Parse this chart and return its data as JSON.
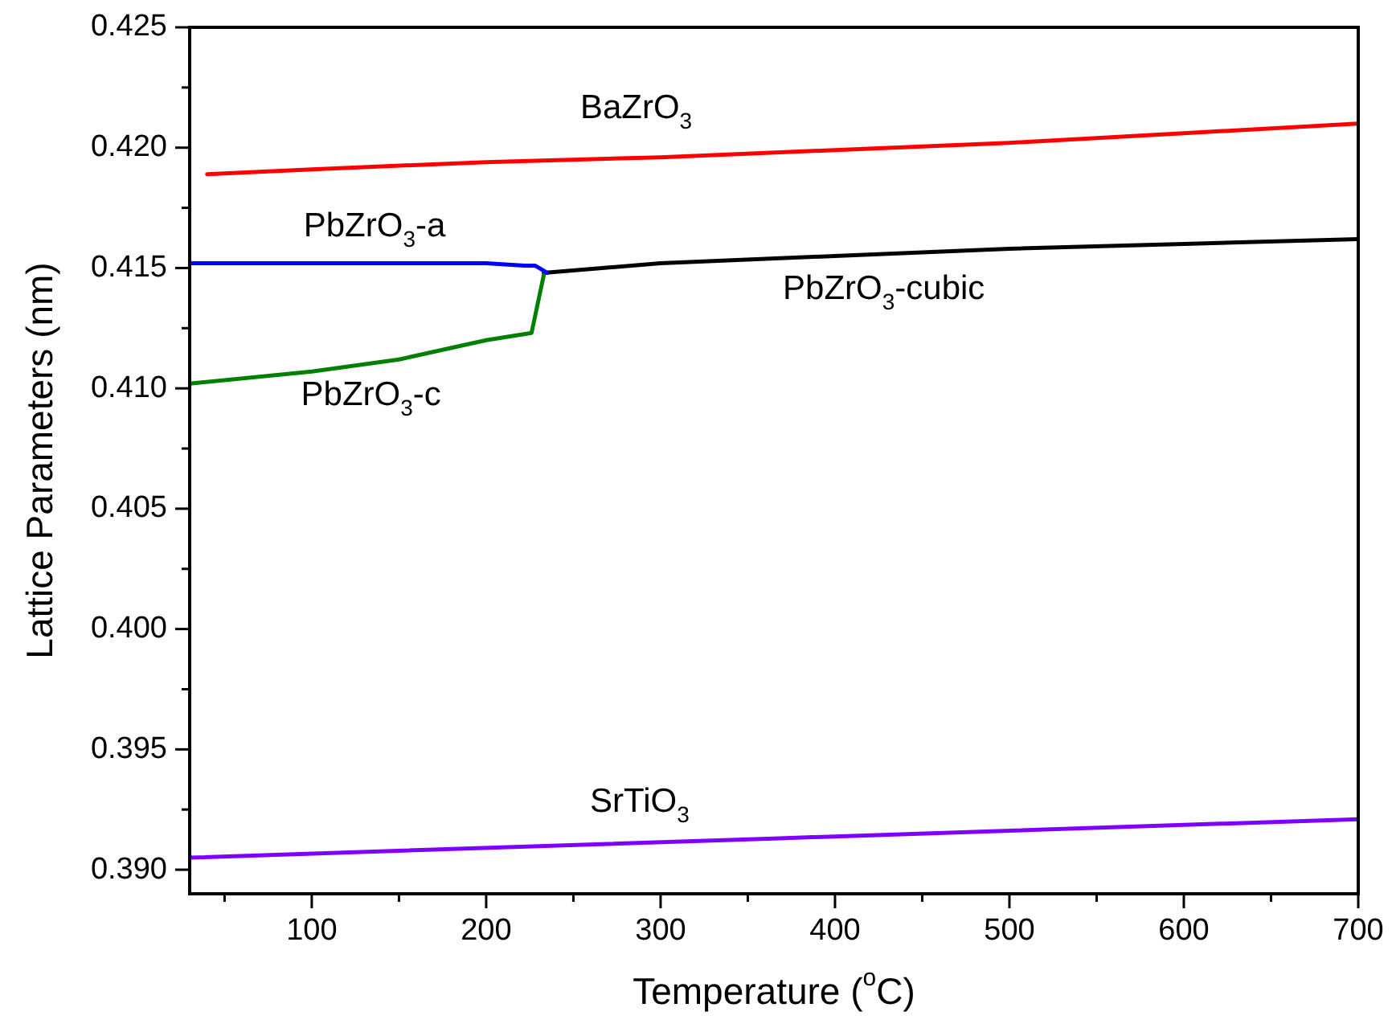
{
  "chart_data": {
    "type": "line",
    "xlabel": "Temperature ($^{o}$C)",
    "ylabel": "Lattice Parameters (nm)",
    "xlim": [
      30,
      700
    ],
    "ylim": [
      0.389,
      0.425
    ],
    "xticks": [
      {
        "value": 50,
        "label": null
      },
      100,
      {
        "value": 150,
        "label": null
      },
      200,
      {
        "value": 250,
        "label": null
      },
      300,
      {
        "value": 350,
        "label": null
      },
      400,
      {
        "value": 450,
        "label": null
      },
      500,
      {
        "value": 550,
        "label": null
      },
      600,
      {
        "value": 650,
        "label": null
      },
      700
    ],
    "yticks": [
      {
        "value": 0.39,
        "label": "0.390"
      },
      {
        "value": 0.3925,
        "label": null
      },
      0.395,
      {
        "value": 0.3975,
        "label": null
      },
      {
        "value": 0.4,
        "label": "0.400"
      },
      {
        "value": 0.4025,
        "label": null
      },
      0.405,
      {
        "value": 0.4075,
        "label": null
      },
      {
        "value": 0.41,
        "label": "0.410"
      },
      {
        "value": 0.4125,
        "label": null
      },
      0.415,
      {
        "value": 0.4175,
        "label": null
      },
      {
        "value": 0.42,
        "label": "0.420"
      },
      {
        "value": 0.4225,
        "label": null
      },
      0.425
    ],
    "grid": false,
    "legend": false,
    "marker": "none",
    "line_style": "solid",
    "series": [
      {
        "name": "BaZrO$_{3}$",
        "color": "#ff0000",
        "x": [
          40,
          100,
          200,
          300,
          400,
          500,
          600,
          700
        ],
        "values": [
          0.4189,
          0.4191,
          0.4194,
          0.4196,
          0.4199,
          0.4202,
          0.4206,
          0.421
        ]
      },
      {
        "name": "PbZrO$_{3}$-a",
        "color": "#0000ff",
        "x": [
          30,
          100,
          200,
          222,
          228,
          235
        ],
        "values": [
          0.4152,
          0.4152,
          0.4152,
          0.4151,
          0.4151,
          0.4148
        ]
      },
      {
        "name": "PbZrO$_{3}$-c",
        "color": "#008000",
        "x": [
          30,
          100,
          150,
          200,
          226,
          233
        ],
        "values": [
          0.4102,
          0.4107,
          0.4112,
          0.412,
          0.4123,
          0.4147
        ]
      },
      {
        "name": "PbZrO$_{3}$-cubic",
        "color": "#000000",
        "x": [
          233,
          300,
          400,
          500,
          600,
          700
        ],
        "values": [
          0.4148,
          0.4152,
          0.4155,
          0.4158,
          0.416,
          0.4162
        ]
      },
      {
        "name": "SrTiO$_{3}$",
        "color": "#8000ff",
        "x": [
          30,
          365,
          700
        ],
        "values": [
          0.3905,
          0.3913,
          0.3921
        ]
      }
    ]
  }
}
